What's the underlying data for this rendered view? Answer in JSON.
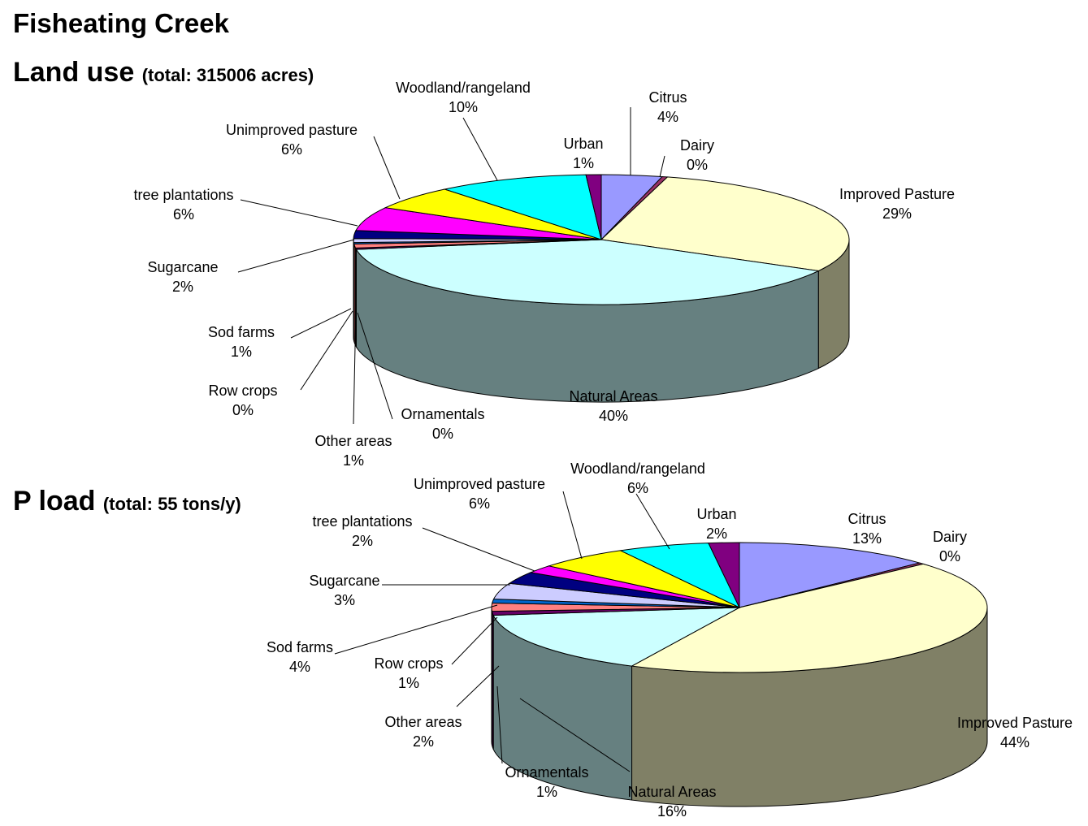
{
  "page": {
    "title": "Fisheating Creek"
  },
  "land_use": {
    "heading": "Land use",
    "total": "(total: 315006 acres)"
  },
  "p_load": {
    "heading": "P load",
    "total": "(total: 55 tons/y)"
  },
  "colors": {
    "Citrus": "#9999ff",
    "Dairy": "#993366",
    "Improved Pasture": "#ffffcc",
    "Natural Areas": "#ccffff",
    "Ornamentals": "#660066",
    "Other areas": "#ff8080",
    "Row crops": "#0066cc",
    "Sod farms": "#ccccff",
    "Sugarcane": "#000080",
    "tree plantations": "#ff00ff",
    "Unimproved pasture": "#ffff00",
    "Woodland/rangeland": "#00ffff",
    "Urban": "#800080"
  },
  "chart_data": [
    {
      "type": "pie",
      "style": "3d",
      "title": "Land use",
      "subtitle": "(total: 315006 acres)",
      "slices": [
        {
          "label": "Citrus",
          "value": 4
        },
        {
          "label": "Dairy",
          "value": 0
        },
        {
          "label": "Improved Pasture",
          "value": 29
        },
        {
          "label": "Natural Areas",
          "value": 40
        },
        {
          "label": "Ornamentals",
          "value": 0
        },
        {
          "label": "Other areas",
          "value": 1
        },
        {
          "label": "Row crops",
          "value": 0
        },
        {
          "label": "Sod farms",
          "value": 1
        },
        {
          "label": "Sugarcane",
          "value": 2
        },
        {
          "label": "tree plantations",
          "value": 6
        },
        {
          "label": "Unimproved pasture",
          "value": 6
        },
        {
          "label": "Woodland/rangeland",
          "value": 10
        },
        {
          "label": "Urban",
          "value": 1
        }
      ]
    },
    {
      "type": "pie",
      "style": "3d",
      "title": "P load",
      "subtitle": "(total: 55 tons/y)",
      "slices": [
        {
          "label": "Citrus",
          "value": 13
        },
        {
          "label": "Dairy",
          "value": 0
        },
        {
          "label": "Improved Pasture",
          "value": 44
        },
        {
          "label": "Natural Areas",
          "value": 16
        },
        {
          "label": "Ornamentals",
          "value": 1
        },
        {
          "label": "Other areas",
          "value": 2
        },
        {
          "label": "Row crops",
          "value": 1
        },
        {
          "label": "Sod farms",
          "value": 4
        },
        {
          "label": "Sugarcane",
          "value": 3
        },
        {
          "label": "tree plantations",
          "value": 2
        },
        {
          "label": "Unimproved pasture",
          "value": 6
        },
        {
          "label": "Woodland/rangeland",
          "value": 6
        },
        {
          "label": "Urban",
          "value": 2
        }
      ]
    }
  ]
}
